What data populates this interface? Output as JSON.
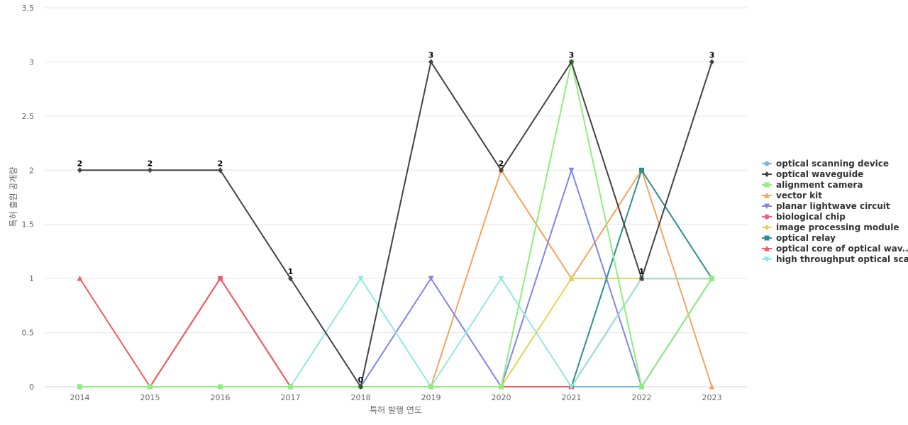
{
  "chart_data": {
    "type": "line",
    "xlabel": "특허 발행 연도",
    "ylabel": "특허 출원 공개량",
    "ylim": [
      0,
      3.5
    ],
    "yticks": [
      0,
      0.5,
      1,
      1.5,
      2,
      2.5,
      3,
      3.5
    ],
    "ytick_labels": [
      "0",
      "0.5",
      "1",
      "1.5",
      "2",
      "2.5",
      "3",
      "3.5"
    ],
    "categories": [
      "2014",
      "2015",
      "2016",
      "2017",
      "2018",
      "2019",
      "2020",
      "2021",
      "2022",
      "2023"
    ],
    "grid": true,
    "legend_position": "right",
    "data_labels_series": "optical waveguide",
    "series": [
      {
        "name": "optical scanning device",
        "color": "#7cb5ec",
        "marker": "circle",
        "values": [
          0,
          0,
          0,
          0,
          0,
          0,
          0,
          0,
          0,
          1
        ]
      },
      {
        "name": "vector kit",
        "color": "#f7a35c",
        "marker": "triangle",
        "values": [
          0,
          0,
          0,
          0,
          0,
          0,
          2,
          1,
          2,
          0
        ]
      },
      {
        "name": "planar lightwave circuit",
        "color": "#8085e9",
        "marker": "triangle-down",
        "values": [
          0,
          0,
          1,
          0,
          0,
          1,
          0,
          2,
          0,
          1
        ]
      },
      {
        "name": "biological chip",
        "color": "#f15c80",
        "marker": "circle",
        "values": [
          0,
          0,
          1,
          0,
          0,
          0,
          0,
          0,
          1,
          1
        ]
      },
      {
        "name": "image processing module",
        "color": "#e4d354",
        "marker": "diamond",
        "values": [
          0,
          0,
          0,
          0,
          0,
          0,
          0,
          1,
          1,
          1
        ]
      },
      {
        "name": "optical relay",
        "color": "#2b908f",
        "marker": "square",
        "values": [
          0,
          0,
          0,
          0,
          0,
          0,
          0,
          0,
          2,
          1
        ]
      },
      {
        "name": "optical core of optical wav...",
        "color": "#f45b5b",
        "marker": "triangle",
        "values": [
          1,
          0,
          1,
          0,
          0,
          0,
          0,
          0,
          1,
          1
        ]
      },
      {
        "name": "high throughput optical sca...",
        "color": "#91e8e1",
        "marker": "triangle-down",
        "values": [
          0,
          0,
          0,
          0,
          1,
          0,
          1,
          0,
          1,
          1
        ]
      },
      {
        "name": "alignment camera",
        "color": "#90ed7d",
        "marker": "square",
        "values": [
          0,
          0,
          0,
          0,
          0,
          0,
          0,
          3,
          0,
          1
        ]
      },
      {
        "name": "optical waveguide",
        "color": "#434348",
        "marker": "diamond",
        "values": [
          2,
          2,
          2,
          1,
          0,
          3,
          2,
          3,
          1,
          3
        ]
      }
    ],
    "legend_order": [
      "optical scanning device",
      "optical waveguide",
      "alignment camera",
      "vector kit",
      "planar lightwave circuit",
      "biological chip",
      "image processing module",
      "optical relay",
      "optical core of optical wav...",
      "high throughput optical sca..."
    ]
  }
}
